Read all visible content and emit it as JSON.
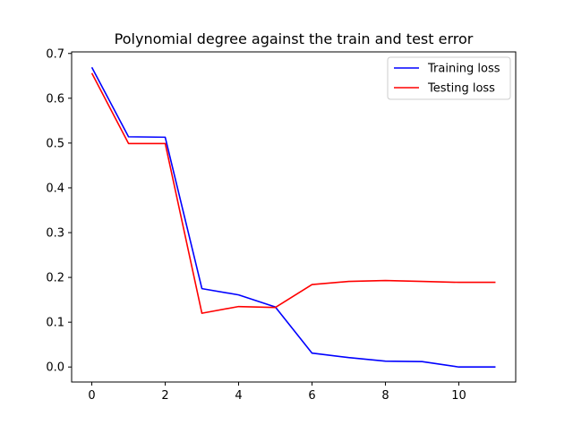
{
  "chart_data": {
    "type": "line",
    "title": "Polynomial degree against the train and test error",
    "xlabel": "",
    "ylabel": "",
    "xlim": [
      -0.55,
      11.55
    ],
    "ylim": [
      -0.0335,
      0.7035
    ],
    "xticks": [
      0,
      2,
      4,
      6,
      8,
      10
    ],
    "xtick_labels": [
      "0",
      "2",
      "4",
      "6",
      "8",
      "10"
    ],
    "yticks": [
      0.0,
      0.1,
      0.2,
      0.3,
      0.4,
      0.5,
      0.6,
      0.7
    ],
    "ytick_labels": [
      "0.0",
      "0.1",
      "0.2",
      "0.3",
      "0.4",
      "0.5",
      "0.6",
      "0.7"
    ],
    "grid": false,
    "legend_position": "top-right",
    "x": [
      0,
      1,
      2,
      3,
      4,
      5,
      6,
      7,
      8,
      9,
      10,
      11
    ],
    "series": [
      {
        "name": "Training loss",
        "color": "#0000ff",
        "values": [
          0.669,
          0.514,
          0.513,
          0.175,
          0.161,
          0.134,
          0.031,
          0.021,
          0.013,
          0.012,
          0.0,
          0.0
        ]
      },
      {
        "name": "Testing loss",
        "color": "#ff0000",
        "values": [
          0.656,
          0.499,
          0.499,
          0.12,
          0.135,
          0.133,
          0.184,
          0.191,
          0.193,
          0.191,
          0.189,
          0.189
        ]
      }
    ]
  }
}
